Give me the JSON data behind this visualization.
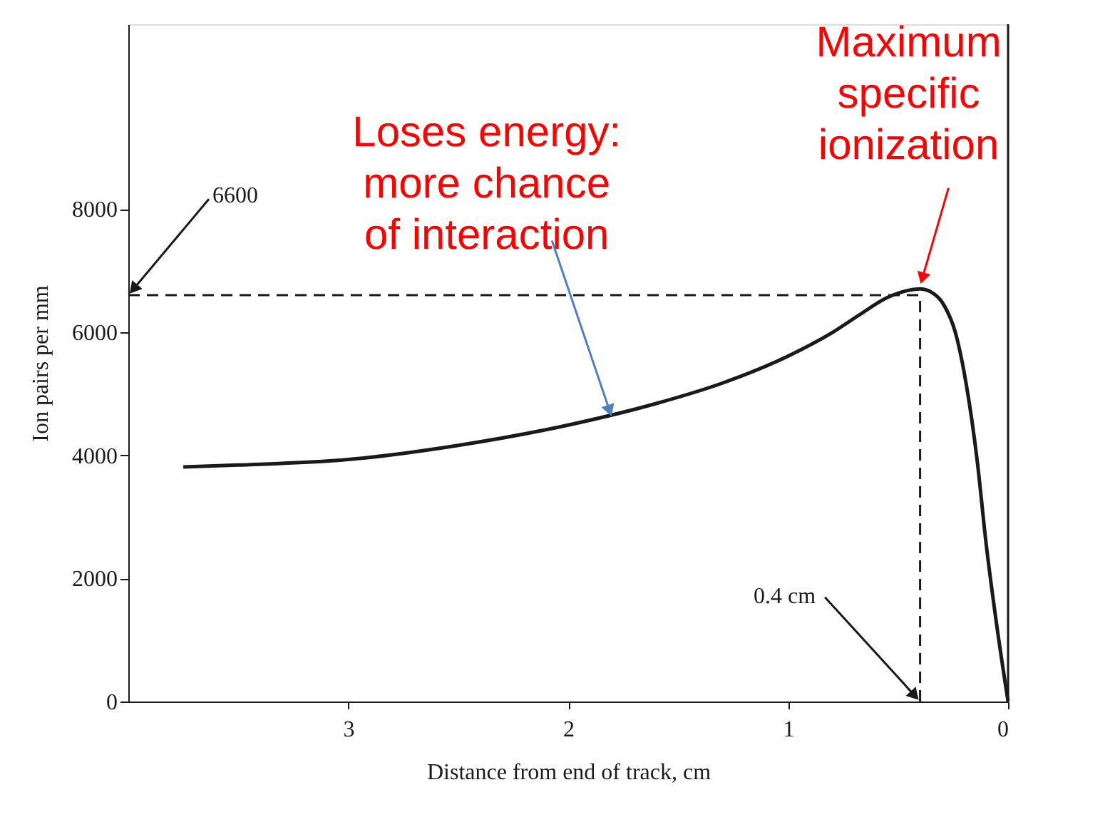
{
  "chart_data": {
    "type": "line",
    "xlabel": "Distance from end of track, cm",
    "ylabel": "Ion pairs per mm",
    "x": [
      3.75,
      3.5,
      3.0,
      2.5,
      2.0,
      1.6,
      1.3,
      1.0,
      0.8,
      0.68,
      0.55,
      0.45,
      0.4,
      0.35,
      0.29,
      0.24,
      0.19,
      0.14,
      0.1,
      0.05,
      0.0
    ],
    "series": [
      {
        "color": "#1a1a1a",
        "values": [
          3810,
          3840,
          3930,
          4160,
          4490,
          4840,
          5170,
          5610,
          5990,
          6270,
          6560,
          6680,
          6700,
          6650,
          6430,
          6000,
          5150,
          3900,
          2570,
          1200,
          0
        ]
      }
    ],
    "xlim": [
      4,
      0
    ],
    "xticks": [
      3,
      2,
      1,
      0
    ],
    "ylim": [
      0,
      11000
    ],
    "yticks": [
      0,
      2000,
      4000,
      6000,
      8000
    ],
    "ref_lines": [
      {
        "axis": "y",
        "value": 6600,
        "line_style": "dashed",
        "color": "#1a1a1a"
      },
      {
        "axis": "x",
        "value": 0.4,
        "line_style": "dashed",
        "color": "#1a1a1a"
      },
      {
        "axis": "x",
        "value": 0,
        "line_style": "solid",
        "color": "#1a1a1a"
      }
    ],
    "annotations": [
      {
        "text": "6600",
        "x": 4,
        "y": 6600
      },
      {
        "text": "0.4 cm",
        "x": 0.4,
        "y": 0
      },
      {
        "text": "Loses energy:\nmore chance\nof interaction",
        "x": 1.8,
        "y": 4600
      },
      {
        "text": "Maximum\nspecific\nionization",
        "x": 0.4,
        "y": 6750
      }
    ],
    "grid": false,
    "marker": "none",
    "line_style": "solid"
  }
}
